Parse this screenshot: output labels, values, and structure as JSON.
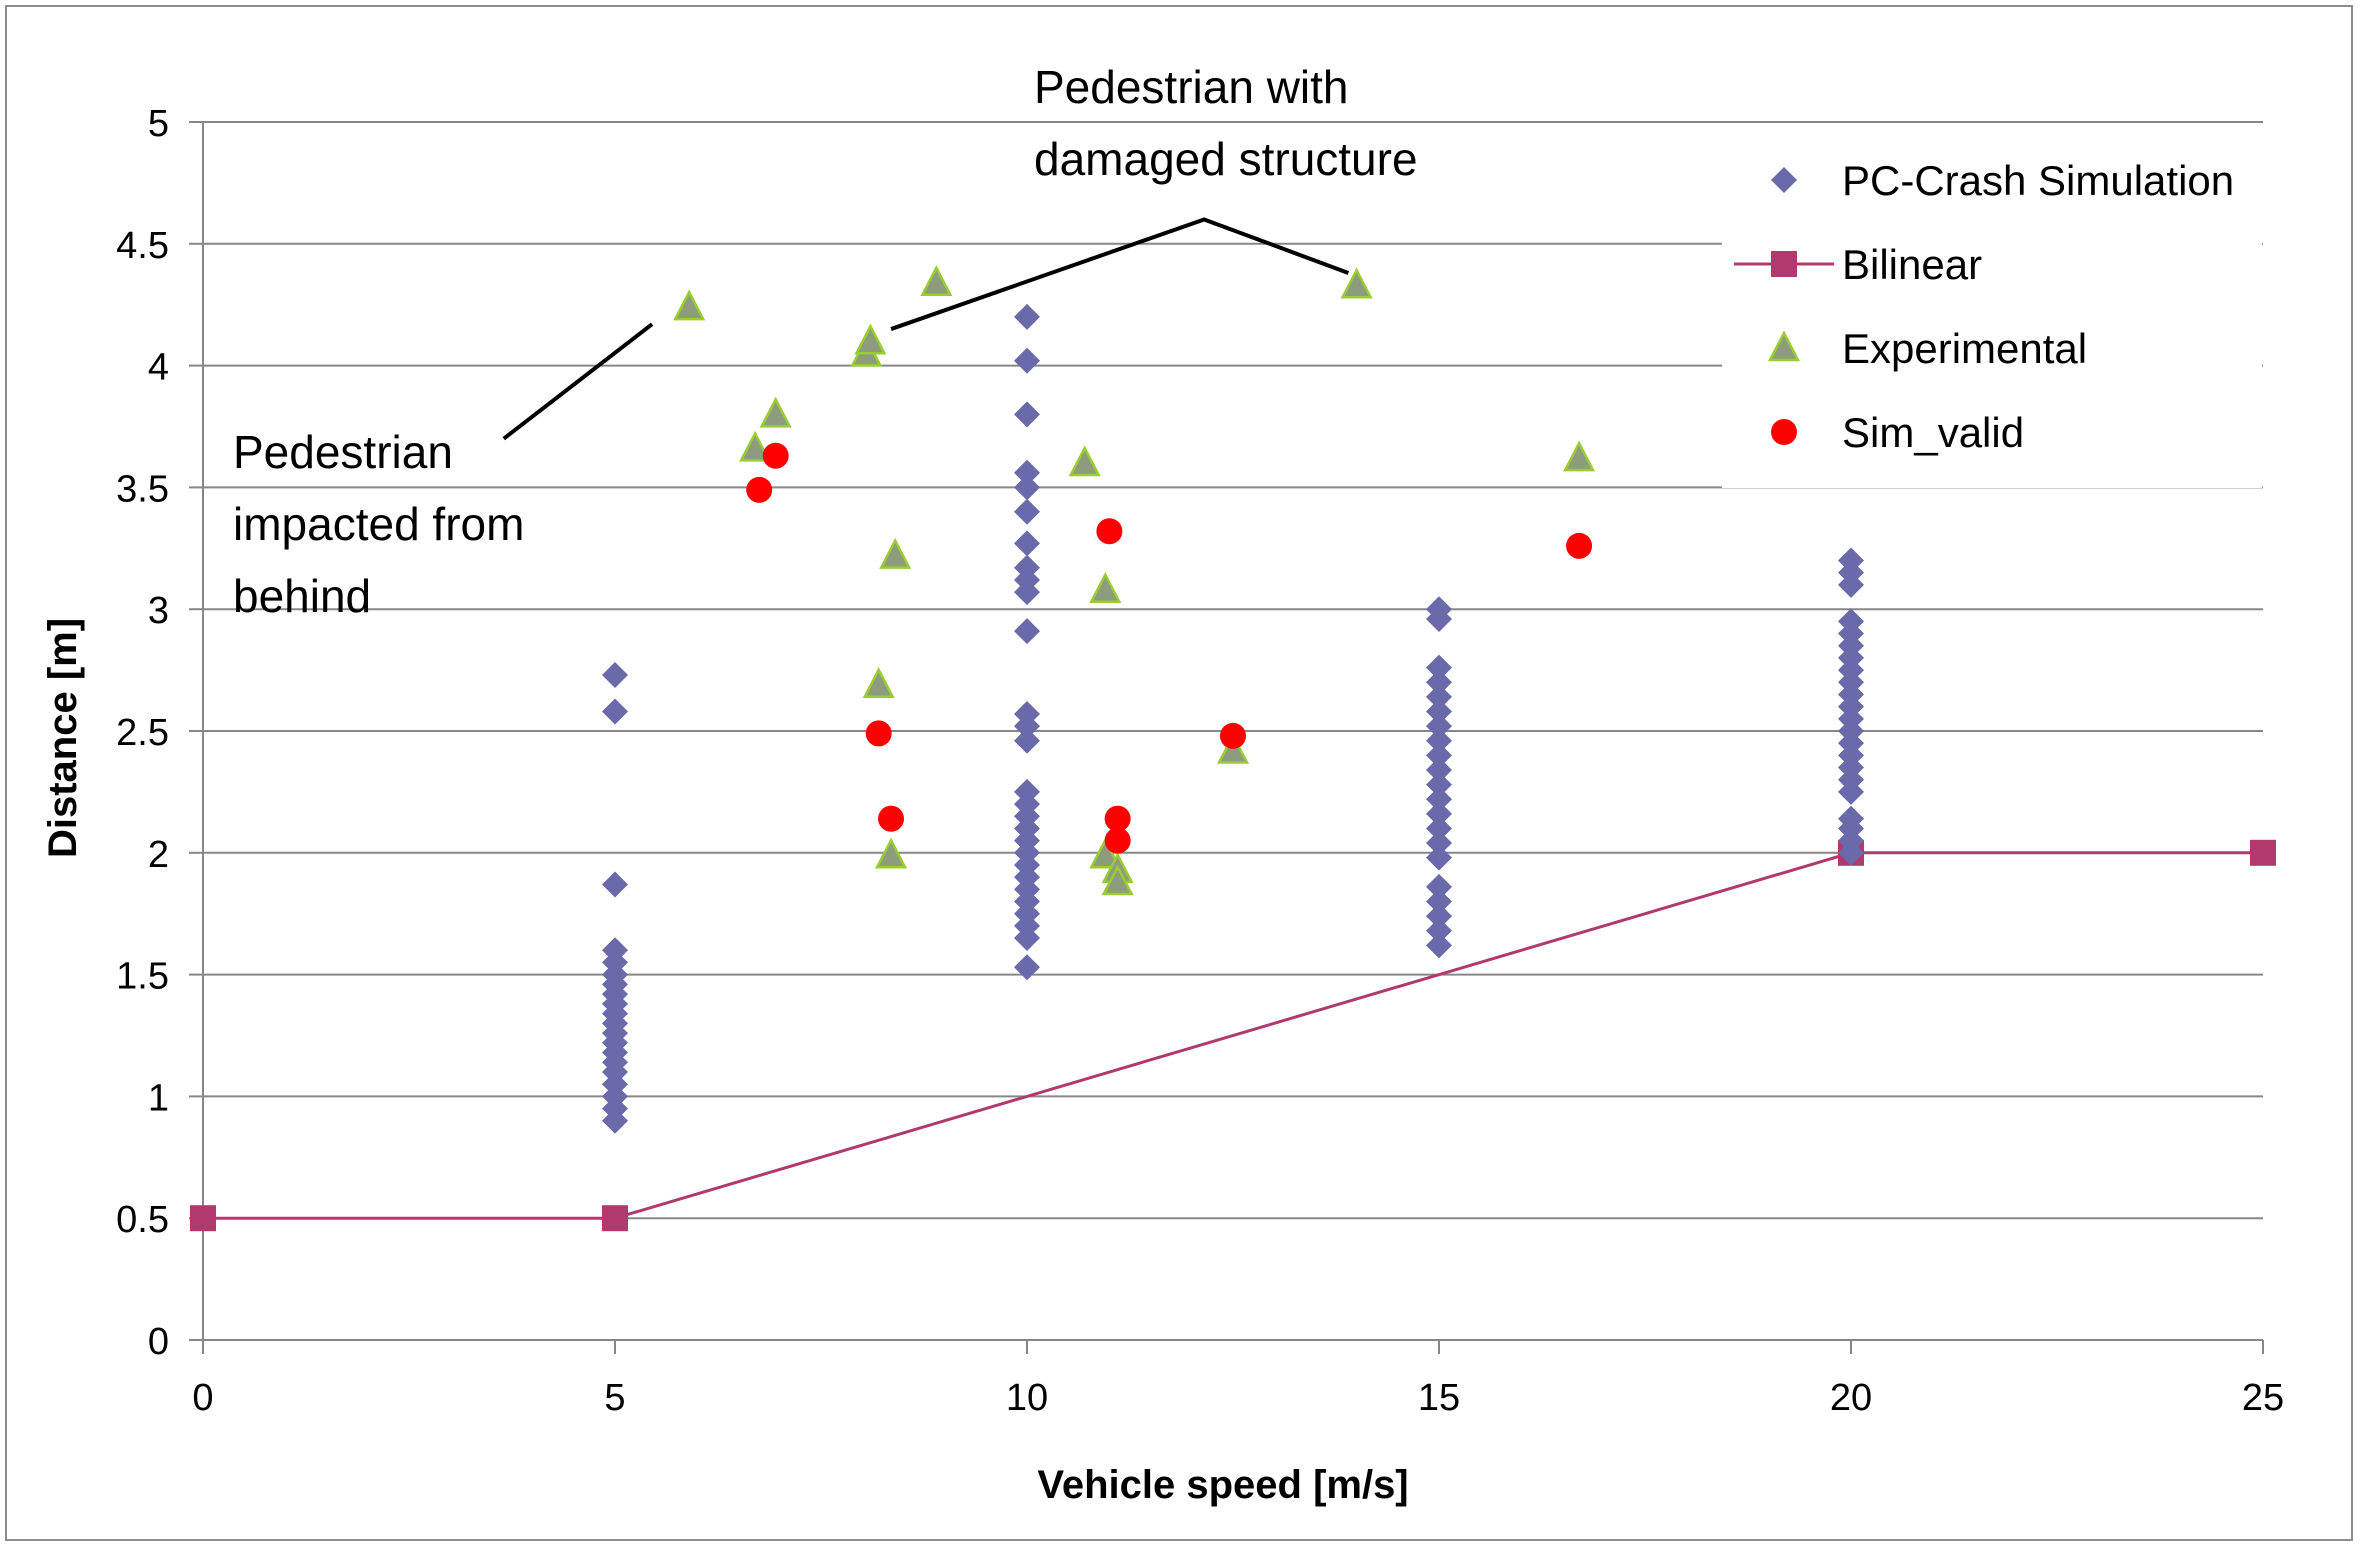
{
  "chart_data": {
    "type": "scatter",
    "title": "",
    "xlabel": "Vehicle speed [m/s]",
    "ylabel": "Distance [m]",
    "xlim": [
      0,
      25
    ],
    "ylim": [
      0,
      5
    ],
    "xticks": [
      0,
      5,
      10,
      15,
      20,
      25
    ],
    "yticks": [
      0,
      0.5,
      1,
      1.5,
      2,
      2.5,
      3,
      3.5,
      4,
      4.5,
      5
    ],
    "xtick_labels": [
      "0",
      "5",
      "10",
      "15",
      "20",
      "25"
    ],
    "ytick_labels": [
      "0",
      "0.5",
      "1",
      "1.5",
      "2",
      "2.5",
      "3",
      "3.5",
      "4",
      "4.5",
      "5"
    ],
    "grid": "horizontal",
    "legend_position": "top-right",
    "series": [
      {
        "name": "PC-Crash Simulation",
        "marker": "diamond",
        "color": "#6a6aaa",
        "points": [
          [
            5,
            2.73
          ],
          [
            5,
            2.58
          ],
          [
            5,
            1.87
          ],
          [
            5,
            1.6
          ],
          [
            5,
            1.55
          ],
          [
            5,
            1.5
          ],
          [
            5,
            1.46
          ],
          [
            5,
            1.42
          ],
          [
            5,
            1.38
          ],
          [
            5,
            1.34
          ],
          [
            5,
            1.3
          ],
          [
            5,
            1.26
          ],
          [
            5,
            1.22
          ],
          [
            5,
            1.18
          ],
          [
            5,
            1.14
          ],
          [
            5,
            1.1
          ],
          [
            5,
            1.05
          ],
          [
            5,
            1.0
          ],
          [
            5,
            0.95
          ],
          [
            5,
            0.9
          ],
          [
            10,
            4.2
          ],
          [
            10,
            4.02
          ],
          [
            10,
            3.8
          ],
          [
            10,
            3.56
          ],
          [
            10,
            3.5
          ],
          [
            10,
            3.4
          ],
          [
            10,
            3.27
          ],
          [
            10,
            3.17
          ],
          [
            10,
            3.12
          ],
          [
            10,
            3.07
          ],
          [
            10,
            2.91
          ],
          [
            10,
            2.57
          ],
          [
            10,
            2.52
          ],
          [
            10,
            2.46
          ],
          [
            10,
            2.25
          ],
          [
            10,
            2.2
          ],
          [
            10,
            2.15
          ],
          [
            10,
            2.1
          ],
          [
            10,
            2.05
          ],
          [
            10,
            2.0
          ],
          [
            10,
            1.95
          ],
          [
            10,
            1.9
          ],
          [
            10,
            1.85
          ],
          [
            10,
            1.8
          ],
          [
            10,
            1.75
          ],
          [
            10,
            1.7
          ],
          [
            10,
            1.65
          ],
          [
            10,
            1.53
          ],
          [
            15,
            3.0
          ],
          [
            15,
            2.96
          ],
          [
            15,
            2.76
          ],
          [
            15,
            2.7
          ],
          [
            15,
            2.64
          ],
          [
            15,
            2.58
          ],
          [
            15,
            2.52
          ],
          [
            15,
            2.46
          ],
          [
            15,
            2.4
          ],
          [
            15,
            2.34
          ],
          [
            15,
            2.28
          ],
          [
            15,
            2.22
          ],
          [
            15,
            2.16
          ],
          [
            15,
            2.1
          ],
          [
            15,
            2.04
          ],
          [
            15,
            1.98
          ],
          [
            15,
            1.86
          ],
          [
            15,
            1.8
          ],
          [
            15,
            1.74
          ],
          [
            15,
            1.68
          ],
          [
            15,
            1.62
          ],
          [
            20,
            3.2
          ],
          [
            20,
            3.15
          ],
          [
            20,
            3.1
          ],
          [
            20,
            2.95
          ],
          [
            20,
            2.9
          ],
          [
            20,
            2.85
          ],
          [
            20,
            2.8
          ],
          [
            20,
            2.75
          ],
          [
            20,
            2.7
          ],
          [
            20,
            2.65
          ],
          [
            20,
            2.6
          ],
          [
            20,
            2.55
          ],
          [
            20,
            2.5
          ],
          [
            20,
            2.45
          ],
          [
            20,
            2.4
          ],
          [
            20,
            2.35
          ],
          [
            20,
            2.3
          ],
          [
            20,
            2.25
          ],
          [
            20,
            2.14
          ],
          [
            20,
            2.1
          ],
          [
            20,
            2.05
          ],
          [
            20,
            2.0
          ]
        ]
      },
      {
        "name": "Bilinear",
        "marker": "square",
        "line": true,
        "color": "#b03a6e",
        "points": [
          [
            0,
            0.5
          ],
          [
            5,
            0.5
          ],
          [
            20,
            2.0
          ],
          [
            25,
            2.0
          ]
        ]
      },
      {
        "name": "Experimental",
        "marker": "triangle",
        "color": "#8c9c7c",
        "points": [
          [
            5.9,
            4.24
          ],
          [
            6.7,
            3.66
          ],
          [
            6.95,
            3.8
          ],
          [
            8.05,
            4.05
          ],
          [
            8.1,
            4.1
          ],
          [
            8.9,
            4.34
          ],
          [
            8.2,
            2.69
          ],
          [
            8.4,
            3.22
          ],
          [
            8.35,
            1.99
          ],
          [
            10.7,
            3.6
          ],
          [
            10.95,
            3.08
          ],
          [
            10.95,
            1.99
          ],
          [
            11.1,
            1.93
          ],
          [
            11.1,
            1.88
          ],
          [
            12.5,
            2.42
          ],
          [
            14.0,
            4.33
          ],
          [
            16.7,
            3.62
          ]
        ]
      },
      {
        "name": "Sim_valid",
        "marker": "circle",
        "color": "#ff0000",
        "points": [
          [
            6.75,
            3.49
          ],
          [
            6.95,
            3.63
          ],
          [
            8.2,
            2.49
          ],
          [
            8.35,
            2.14
          ],
          [
            11.0,
            3.32
          ],
          [
            11.1,
            2.14
          ],
          [
            11.1,
            2.05
          ],
          [
            12.5,
            2.48
          ],
          [
            16.7,
            3.26
          ]
        ]
      }
    ],
    "annotations": [
      {
        "name": "annotation-pedestrian-behind",
        "lines": [
          "Pedestrian",
          "impacted from",
          "behind"
        ],
        "pointer": [
          [
            3.65,
            3.7
          ],
          [
            5.45,
            4.17
          ]
        ]
      },
      {
        "name": "annotation-damaged-structure",
        "lines": [
          "Pedestrian with",
          "damaged structure"
        ],
        "pointer": [
          [
            8.35,
            4.15
          ],
          [
            12.15,
            4.6
          ],
          [
            13.9,
            4.38
          ]
        ]
      }
    ]
  }
}
